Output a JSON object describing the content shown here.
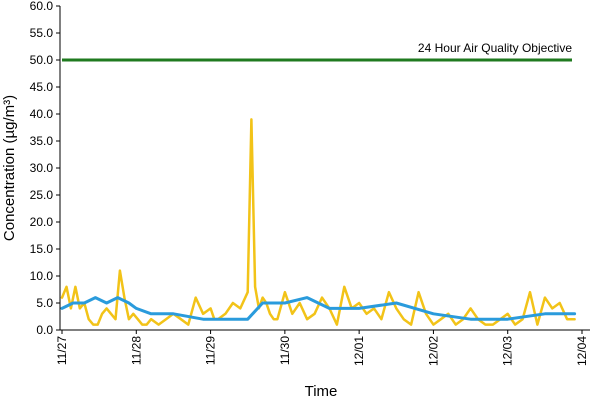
{
  "chart_data": {
    "type": "line",
    "title": "",
    "xlabel": "Time",
    "ylabel": "Concentration (µg/m³)",
    "ylim": [
      0,
      60
    ],
    "yticks": [
      0,
      5,
      10,
      15,
      20,
      25,
      30,
      35,
      40,
      45,
      50,
      55,
      60
    ],
    "ytick_labels": [
      "0.0",
      "5.0",
      "10.0",
      "15.0",
      "20.0",
      "25.0",
      "30.0",
      "35.0",
      "40.0",
      "45.0",
      "50.0",
      "55.0",
      "60.0"
    ],
    "x_dates": [
      "11/27",
      "11/28",
      "11/29",
      "11/30",
      "12/01",
      "12/02",
      "12/03",
      "12/04"
    ],
    "grid": false,
    "legend": "none",
    "annotation": {
      "text": "24 Hour Air Quality Objective"
    },
    "reference_line": {
      "value": 50,
      "color": "#1f7a1f"
    },
    "series": [
      {
        "color": "#f2c318",
        "x_days": [
          0,
          0.06,
          0.12,
          0.18,
          0.24,
          0.3,
          0.36,
          0.42,
          0.48,
          0.54,
          0.6,
          0.66,
          0.72,
          0.78,
          0.84,
          0.9,
          0.96,
          1.02,
          1.08,
          1.14,
          1.2,
          1.3,
          1.4,
          1.5,
          1.6,
          1.7,
          1.8,
          1.9,
          2.0,
          2.05,
          2.1,
          2.2,
          2.3,
          2.4,
          2.5,
          2.55,
          2.6,
          2.65,
          2.7,
          2.75,
          2.8,
          2.85,
          2.9,
          3.0,
          3.1,
          3.2,
          3.3,
          3.4,
          3.5,
          3.6,
          3.7,
          3.8,
          3.9,
          4.0,
          4.1,
          4.2,
          4.3,
          4.4,
          4.5,
          4.6,
          4.7,
          4.8,
          4.9,
          5.0,
          5.1,
          5.2,
          5.3,
          5.4,
          5.5,
          5.6,
          5.7,
          5.8,
          5.9,
          6.0,
          6.1,
          6.2,
          6.3,
          6.4,
          6.5,
          6.6,
          6.7,
          6.8,
          6.9
        ],
        "values": [
          6,
          8,
          4,
          8,
          4,
          5,
          2,
          1,
          1,
          3,
          4,
          3,
          2,
          11,
          6,
          2,
          3,
          2,
          1,
          1,
          2,
          1,
          2,
          3,
          2,
          1,
          6,
          3,
          4,
          2,
          2,
          3,
          5,
          4,
          7,
          39,
          8,
          4,
          6,
          5,
          3,
          2,
          2,
          7,
          3,
          5,
          2,
          3,
          6,
          4,
          1,
          8,
          4,
          5,
          3,
          4,
          2,
          7,
          4,
          2,
          1,
          7,
          3,
          1,
          2,
          3,
          1,
          2,
          4,
          2,
          1,
          1,
          2,
          3,
          1,
          2,
          7,
          1,
          6,
          4,
          5,
          2,
          2
        ]
      },
      {
        "color": "#2a9bdc",
        "x_days": [
          0,
          0.15,
          0.3,
          0.45,
          0.6,
          0.75,
          0.9,
          1.0,
          1.2,
          1.5,
          1.9,
          2.5,
          2.7,
          3.0,
          3.3,
          3.6,
          4.0,
          4.5,
          5.0,
          5.5,
          6.0,
          6.5,
          6.9
        ],
        "values": [
          4,
          5,
          5,
          6,
          5,
          6,
          5,
          4,
          3,
          3,
          2,
          2,
          5,
          5,
          6,
          4,
          4,
          5,
          3,
          2,
          2,
          3,
          3
        ]
      }
    ]
  }
}
